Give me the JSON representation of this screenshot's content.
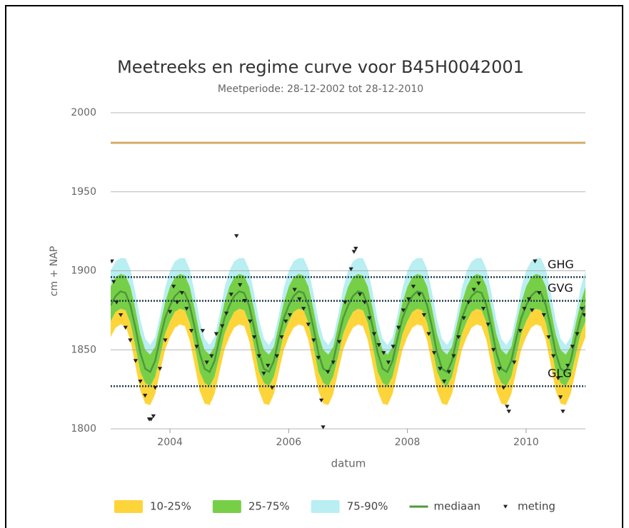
{
  "chart_data": {
    "type": "line",
    "title": "Meetreeks en regime curve voor B45H0042001",
    "subtitle": "Meetperiode: 28-12-2002 tot 28-12-2010",
    "x_label": "datum",
    "y_label": "cm + NAP",
    "xlim": [
      2003,
      2011
    ],
    "xticks": [
      2004,
      2006,
      2008,
      2010
    ],
    "ylim": [
      1800,
      2000
    ],
    "yticks": [
      1800,
      1850,
      1900,
      1950,
      2000
    ],
    "grid": true,
    "legend": "bottom",
    "x": [
      2003,
      2003.083,
      2003.167,
      2003.25,
      2003.333,
      2003.417,
      2003.5,
      2003.583,
      2003.667,
      2003.75,
      2003.833,
      2003.917,
      2004,
      2004.083,
      2004.167,
      2004.25,
      2004.333,
      2004.417,
      2004.5,
      2004.583,
      2004.667,
      2004.75,
      2004.833,
      2004.917,
      2005,
      2005.083,
      2005.167,
      2005.25,
      2005.333,
      2005.417,
      2005.5,
      2005.583,
      2005.667,
      2005.75,
      2005.833,
      2005.917,
      2006,
      2006.083,
      2006.167,
      2006.25,
      2006.333,
      2006.417,
      2006.5,
      2006.583,
      2006.667,
      2006.75,
      2006.833,
      2006.917,
      2007,
      2007.083,
      2007.167,
      2007.25,
      2007.333,
      2007.417,
      2007.5,
      2007.583,
      2007.667,
      2007.75,
      2007.833,
      2007.917,
      2008,
      2008.083,
      2008.167,
      2008.25,
      2008.333,
      2008.417,
      2008.5,
      2008.583,
      2008.667,
      2008.75,
      2008.833,
      2008.917,
      2009,
      2009.083,
      2009.167,
      2009.25,
      2009.333,
      2009.417,
      2009.5,
      2009.583,
      2009.667,
      2009.75,
      2009.833,
      2009.917,
      2010,
      2010.083,
      2010.167,
      2010.25,
      2010.333,
      2010.417,
      2010.5,
      2010.583,
      2010.667,
      2010.75,
      2010.833,
      2010.917,
      2011
    ],
    "series": [
      {
        "name": "10-25%",
        "color": "#fdd53a",
        "lower": [
          1858,
          1864,
          1866,
          1865,
          1856,
          1840,
          1824,
          1816,
          1815,
          1822,
          1836,
          1850,
          1858,
          1864,
          1866,
          1865,
          1856,
          1840,
          1824,
          1816,
          1815,
          1822,
          1836,
          1850,
          1858,
          1864,
          1866,
          1865,
          1856,
          1840,
          1824,
          1816,
          1815,
          1822,
          1836,
          1850,
          1858,
          1864,
          1866,
          1865,
          1856,
          1840,
          1824,
          1816,
          1815,
          1822,
          1836,
          1850,
          1858,
          1864,
          1866,
          1865,
          1856,
          1840,
          1824,
          1816,
          1815,
          1822,
          1836,
          1850,
          1858,
          1864,
          1866,
          1865,
          1856,
          1840,
          1824,
          1816,
          1815,
          1822,
          1836,
          1850,
          1858,
          1864,
          1866,
          1865,
          1856,
          1840,
          1824,
          1816,
          1815,
          1822,
          1836,
          1850,
          1858,
          1864,
          1866,
          1865,
          1856,
          1840,
          1824,
          1816,
          1815,
          1822,
          1836,
          1850,
          1858
        ],
        "upper": [
          1868,
          1874,
          1876,
          1875,
          1867,
          1852,
          1836,
          1829,
          1827,
          1833,
          1846,
          1860,
          1868,
          1874,
          1876,
          1875,
          1867,
          1852,
          1836,
          1829,
          1827,
          1833,
          1846,
          1860,
          1868,
          1874,
          1876,
          1875,
          1867,
          1852,
          1836,
          1829,
          1827,
          1833,
          1846,
          1860,
          1868,
          1874,
          1876,
          1875,
          1867,
          1852,
          1836,
          1829,
          1827,
          1833,
          1846,
          1860,
          1868,
          1874,
          1876,
          1875,
          1867,
          1852,
          1836,
          1829,
          1827,
          1833,
          1846,
          1860,
          1868,
          1874,
          1876,
          1875,
          1867,
          1852,
          1836,
          1829,
          1827,
          1833,
          1846,
          1860,
          1868,
          1874,
          1876,
          1875,
          1867,
          1852,
          1836,
          1829,
          1827,
          1833,
          1846,
          1860,
          1868,
          1874,
          1876,
          1875,
          1867,
          1852,
          1836,
          1829,
          1827,
          1833,
          1846,
          1860,
          1868
        ]
      },
      {
        "name": "25-75%",
        "color": "#77cf48",
        "lower": [
          1868,
          1874,
          1876,
          1875,
          1867,
          1852,
          1836,
          1829,
          1827,
          1833,
          1846,
          1860,
          1868,
          1874,
          1876,
          1875,
          1867,
          1852,
          1836,
          1829,
          1827,
          1833,
          1846,
          1860,
          1868,
          1874,
          1876,
          1875,
          1867,
          1852,
          1836,
          1829,
          1827,
          1833,
          1846,
          1860,
          1868,
          1874,
          1876,
          1875,
          1867,
          1852,
          1836,
          1829,
          1827,
          1833,
          1846,
          1860,
          1868,
          1874,
          1876,
          1875,
          1867,
          1852,
          1836,
          1829,
          1827,
          1833,
          1846,
          1860,
          1868,
          1874,
          1876,
          1875,
          1867,
          1852,
          1836,
          1829,
          1827,
          1833,
          1846,
          1860,
          1868,
          1874,
          1876,
          1875,
          1867,
          1852,
          1836,
          1829,
          1827,
          1833,
          1846,
          1860,
          1868,
          1874,
          1876,
          1875,
          1867,
          1852,
          1836,
          1829,
          1827,
          1833,
          1846,
          1860,
          1868
        ],
        "upper": [
          1890,
          1896,
          1898,
          1897,
          1890,
          1876,
          1860,
          1850,
          1847,
          1852,
          1866,
          1880,
          1890,
          1896,
          1898,
          1897,
          1890,
          1876,
          1860,
          1850,
          1847,
          1852,
          1866,
          1880,
          1890,
          1896,
          1898,
          1897,
          1890,
          1876,
          1860,
          1850,
          1847,
          1852,
          1866,
          1880,
          1890,
          1896,
          1898,
          1897,
          1890,
          1876,
          1860,
          1850,
          1847,
          1852,
          1866,
          1880,
          1890,
          1896,
          1898,
          1897,
          1890,
          1876,
          1860,
          1850,
          1847,
          1852,
          1866,
          1880,
          1890,
          1896,
          1898,
          1897,
          1890,
          1876,
          1860,
          1850,
          1847,
          1852,
          1866,
          1880,
          1890,
          1896,
          1898,
          1897,
          1890,
          1876,
          1860,
          1850,
          1847,
          1852,
          1866,
          1880,
          1890,
          1896,
          1898,
          1897,
          1890,
          1876,
          1860,
          1850,
          1847,
          1852,
          1866,
          1880,
          1890
        ]
      },
      {
        "name": "75-90%",
        "color": "#b9eef2",
        "lower": [
          1890,
          1896,
          1898,
          1897,
          1890,
          1876,
          1860,
          1850,
          1847,
          1852,
          1866,
          1880,
          1890,
          1896,
          1898,
          1897,
          1890,
          1876,
          1860,
          1850,
          1847,
          1852,
          1866,
          1880,
          1890,
          1896,
          1898,
          1897,
          1890,
          1876,
          1860,
          1850,
          1847,
          1852,
          1866,
          1880,
          1890,
          1896,
          1898,
          1897,
          1890,
          1876,
          1860,
          1850,
          1847,
          1852,
          1866,
          1880,
          1890,
          1896,
          1898,
          1897,
          1890,
          1876,
          1860,
          1850,
          1847,
          1852,
          1866,
          1880,
          1890,
          1896,
          1898,
          1897,
          1890,
          1876,
          1860,
          1850,
          1847,
          1852,
          1866,
          1880,
          1890,
          1896,
          1898,
          1897,
          1890,
          1876,
          1860,
          1850,
          1847,
          1852,
          1866,
          1880,
          1890,
          1896,
          1898,
          1897,
          1890,
          1876,
          1860,
          1850,
          1847,
          1852,
          1866,
          1880,
          1890
        ],
        "upper": [
          1900,
          1906,
          1908,
          1908,
          1901,
          1886,
          1869,
          1857,
          1853,
          1858,
          1872,
          1889,
          1900,
          1906,
          1908,
          1908,
          1901,
          1886,
          1869,
          1857,
          1853,
          1858,
          1872,
          1889,
          1900,
          1906,
          1908,
          1908,
          1901,
          1886,
          1869,
          1857,
          1853,
          1858,
          1872,
          1889,
          1900,
          1906,
          1908,
          1908,
          1901,
          1886,
          1869,
          1857,
          1853,
          1858,
          1872,
          1889,
          1900,
          1906,
          1908,
          1908,
          1901,
          1886,
          1869,
          1857,
          1853,
          1858,
          1872,
          1889,
          1900,
          1906,
          1908,
          1908,
          1901,
          1886,
          1869,
          1857,
          1853,
          1858,
          1872,
          1889,
          1900,
          1906,
          1908,
          1908,
          1901,
          1886,
          1869,
          1857,
          1853,
          1858,
          1872,
          1889,
          1900,
          1906,
          1908,
          1908,
          1901,
          1886,
          1869,
          1857,
          1853,
          1858,
          1872,
          1889,
          1900
        ]
      },
      {
        "name": "mediaan",
        "color": "#4c9a3c",
        "values": [
          1878,
          1884,
          1887,
          1886,
          1878,
          1864,
          1848,
          1838,
          1836,
          1843,
          1857,
          1870,
          1878,
          1884,
          1887,
          1886,
          1878,
          1864,
          1848,
          1838,
          1836,
          1843,
          1857,
          1870,
          1878,
          1884,
          1887,
          1886,
          1878,
          1864,
          1848,
          1838,
          1836,
          1843,
          1857,
          1870,
          1878,
          1884,
          1887,
          1886,
          1878,
          1864,
          1848,
          1838,
          1836,
          1843,
          1857,
          1870,
          1878,
          1884,
          1887,
          1886,
          1878,
          1864,
          1848,
          1838,
          1836,
          1843,
          1857,
          1870,
          1878,
          1884,
          1887,
          1886,
          1878,
          1864,
          1848,
          1838,
          1836,
          1843,
          1857,
          1870,
          1878,
          1884,
          1887,
          1886,
          1878,
          1864,
          1848,
          1838,
          1836,
          1843,
          1857,
          1870,
          1878,
          1884,
          1887,
          1886,
          1878,
          1864,
          1848,
          1838,
          1836,
          1843,
          1857,
          1870,
          1878
        ]
      },
      {
        "name": "meting",
        "color": "#222222",
        "x": [
          2003.02,
          2003.05,
          2003.1,
          2003.17,
          2003.25,
          2003.33,
          2003.42,
          2003.5,
          2003.58,
          2003.65,
          2003.68,
          2003.72,
          2003.75,
          2003.83,
          2003.92,
          2004,
          2004.06,
          2004.12,
          2004.2,
          2004.28,
          2004.36,
          2004.45,
          2004.55,
          2004.62,
          2004.7,
          2004.78,
          2004.88,
          2004.95,
          2005.03,
          2005.12,
          2005.18,
          2005.26,
          2005.35,
          2005.42,
          2005.5,
          2005.58,
          2005.65,
          2005.72,
          2005.8,
          2005.88,
          2005.95,
          2006.02,
          2006.1,
          2006.18,
          2006.25,
          2006.33,
          2006.42,
          2006.5,
          2006.55,
          2006.58,
          2006.66,
          2006.75,
          2006.85,
          2006.95,
          2007.05,
          2007.1,
          2007.13,
          2007.2,
          2007.28,
          2007.36,
          2007.44,
          2007.52,
          2007.6,
          2007.68,
          2007.76,
          2007.85,
          2007.93,
          2008.02,
          2008.1,
          2008.2,
          2008.28,
          2008.36,
          2008.45,
          2008.55,
          2008.62,
          2008.7,
          2008.78,
          2008.86,
          2008.95,
          2009.03,
          2009.12,
          2009.2,
          2009.28,
          2009.36,
          2009.45,
          2009.55,
          2009.62,
          2009.68,
          2009.71,
          2009.8,
          2009.9,
          2009.97,
          2010.05,
          2010.1,
          2010.15,
          2010.22,
          2010.3,
          2010.38,
          2010.46,
          2010.54,
          2010.58,
          2010.62,
          2010.7,
          2010.78,
          2010.86,
          2010.94,
          2010.98
        ],
        "values": [
          1906,
          1893,
          1880,
          1872,
          1864,
          1856,
          1843,
          1830,
          1821,
          1806,
          1806,
          1808,
          1826,
          1838,
          1856,
          1874,
          1890,
          1880,
          1886,
          1876,
          1862,
          1852,
          1862,
          1842,
          1846,
          1860,
          1865,
          1873,
          1885,
          1922,
          1891,
          1881,
          1868,
          1858,
          1846,
          1835,
          1840,
          1826,
          1846,
          1858,
          1868,
          1872,
          1888,
          1882,
          1876,
          1866,
          1856,
          1845,
          1818,
          1801,
          1836,
          1842,
          1855,
          1880,
          1901,
          1912,
          1914,
          1885,
          1880,
          1870,
          1860,
          1853,
          1848,
          1842,
          1852,
          1864,
          1875,
          1882,
          1890,
          1885,
          1872,
          1860,
          1848,
          1838,
          1830,
          1836,
          1846,
          1858,
          1870,
          1880,
          1888,
          1892,
          1876,
          1866,
          1850,
          1838,
          1826,
          1814,
          1811,
          1842,
          1862,
          1876,
          1882,
          1875,
          1906,
          1886,
          1872,
          1858,
          1846,
          1832,
          1820,
          1811,
          1840,
          1852,
          1860,
          1876,
          1872
        ]
      }
    ],
    "reference_lines": [
      {
        "value": 1981,
        "color": "#d4ae6a"
      },
      {
        "value": 1896,
        "label": "GHG",
        "color": "#1f3a4a"
      },
      {
        "value": 1881,
        "label": "GVG",
        "color": "#1f3a4a"
      },
      {
        "value": 1827,
        "label": "GLG",
        "color": "#1f3a4a"
      }
    ]
  }
}
